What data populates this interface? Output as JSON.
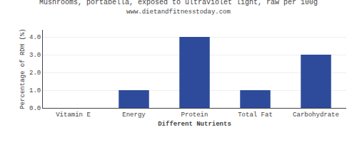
{
  "chart_data": {
    "type": "bar",
    "title": "Mushrooms, portabella, exposed to ultraviolet light, raw per 100g",
    "subtitle": "www.dietandfitnesstoday.com",
    "categories": [
      "Vitamin E",
      "Energy",
      "Protein",
      "Total Fat",
      "Carbohydrate"
    ],
    "values": [
      0.0,
      1.0,
      4.0,
      1.0,
      3.0
    ],
    "color": "#2e4b9b",
    "xlabel": "Different Nutrients",
    "ylabel": "Percentage of RDH (%)",
    "ylim": [
      0,
      4.4
    ],
    "yticks": [
      {
        "value": 0,
        "label": "0.0"
      },
      {
        "value": 1,
        "label": "1.0"
      },
      {
        "value": 2,
        "label": "2.0"
      },
      {
        "value": 3,
        "label": "3.0"
      },
      {
        "value": 4,
        "label": "4.0"
      }
    ],
    "grid": true
  }
}
